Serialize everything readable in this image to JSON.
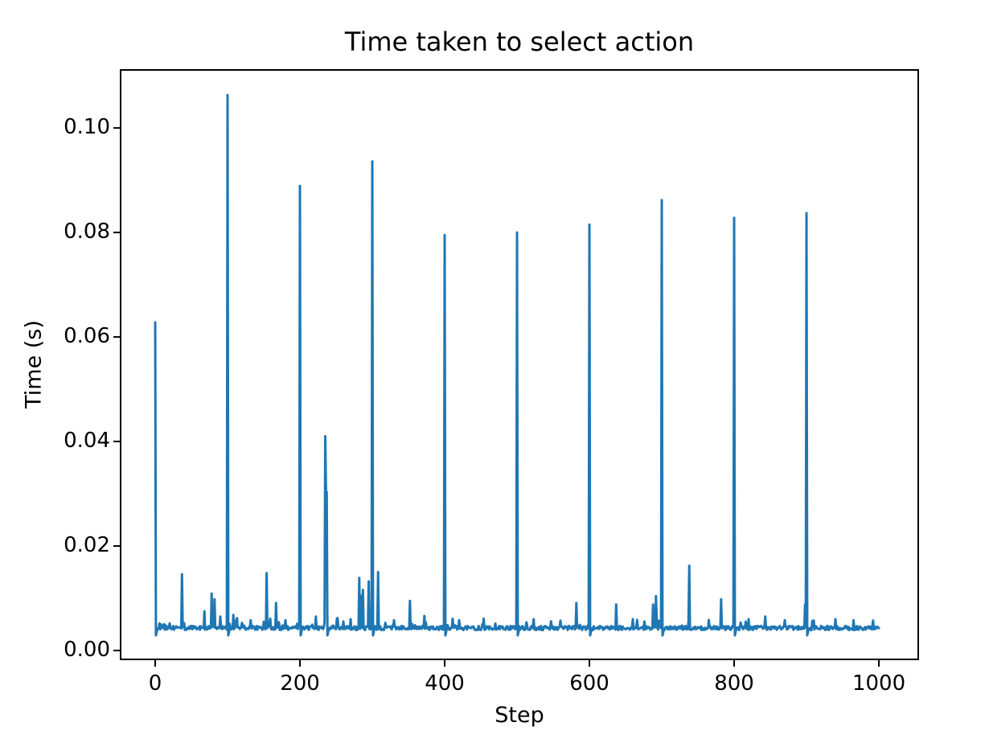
{
  "figure": {
    "background": "#ffffff"
  },
  "chart_data": {
    "type": "line",
    "title": "Time taken to select action",
    "xlabel": "Step",
    "ylabel": "Time (s)",
    "legend": null,
    "grid": false,
    "line_color": "#1f77b4",
    "axis_color": "#000000",
    "xlim": [
      -47.8,
      1054.4
    ],
    "ylim": [
      -0.0017,
      0.1111
    ],
    "xticks": [
      0,
      200,
      400,
      600,
      800,
      1000
    ],
    "xtick_labels": [
      "0",
      "200",
      "400",
      "600",
      "800",
      "1000"
    ],
    "yticks": [
      0.0,
      0.02,
      0.04,
      0.06,
      0.08,
      0.1
    ],
    "ytick_labels": [
      "0.00",
      "0.02",
      "0.04",
      "0.06",
      "0.08",
      "0.10"
    ],
    "x_range": [
      0,
      1000
    ],
    "n_points": 1001,
    "baseline": {
      "mean": 0.0043,
      "noise": 0.0004
    },
    "post_spike_dip": {
      "value": 0.0029,
      "recovery": 0.0035,
      "threshold": 0.025
    },
    "spikes": [
      {
        "step": 0,
        "value": 0.0628
      },
      {
        "step": 37,
        "value": 0.0146
      },
      {
        "step": 68,
        "value": 0.0075
      },
      {
        "step": 78,
        "value": 0.0109
      },
      {
        "step": 82,
        "value": 0.0098
      },
      {
        "step": 90,
        "value": 0.0065
      },
      {
        "step": 100,
        "value": 0.1063
      },
      {
        "step": 108,
        "value": 0.0068
      },
      {
        "step": 113,
        "value": 0.0062
      },
      {
        "step": 154,
        "value": 0.0148
      },
      {
        "step": 167,
        "value": 0.0091
      },
      {
        "step": 180,
        "value": 0.0058
      },
      {
        "step": 200,
        "value": 0.0889
      },
      {
        "step": 222,
        "value": 0.0065
      },
      {
        "step": 235,
        "value": 0.041
      },
      {
        "step": 236,
        "value": 0.0303
      },
      {
        "step": 237,
        "value": 0.0303
      },
      {
        "step": 252,
        "value": 0.0062
      },
      {
        "step": 270,
        "value": 0.006
      },
      {
        "step": 282,
        "value": 0.0139
      },
      {
        "step": 285,
        "value": 0.0105
      },
      {
        "step": 287,
        "value": 0.0116
      },
      {
        "step": 295,
        "value": 0.0132
      },
      {
        "step": 300,
        "value": 0.0936
      },
      {
        "step": 308,
        "value": 0.015
      },
      {
        "step": 330,
        "value": 0.0058
      },
      {
        "step": 352,
        "value": 0.0095
      },
      {
        "step": 372,
        "value": 0.0066
      },
      {
        "step": 400,
        "value": 0.0795
      },
      {
        "step": 420,
        "value": 0.0058
      },
      {
        "step": 454,
        "value": 0.0061
      },
      {
        "step": 500,
        "value": 0.08
      },
      {
        "step": 523,
        "value": 0.006
      },
      {
        "step": 560,
        "value": 0.0057
      },
      {
        "step": 582,
        "value": 0.0091
      },
      {
        "step": 600,
        "value": 0.0815
      },
      {
        "step": 637,
        "value": 0.0088
      },
      {
        "step": 660,
        "value": 0.006
      },
      {
        "step": 688,
        "value": 0.0088
      },
      {
        "step": 692,
        "value": 0.0104
      },
      {
        "step": 700,
        "value": 0.0862
      },
      {
        "step": 738,
        "value": 0.0162
      },
      {
        "step": 782,
        "value": 0.0098
      },
      {
        "step": 800,
        "value": 0.0828
      },
      {
        "step": 820,
        "value": 0.006
      },
      {
        "step": 843,
        "value": 0.0065
      },
      {
        "step": 870,
        "value": 0.0058
      },
      {
        "step": 898,
        "value": 0.0088
      },
      {
        "step": 900,
        "value": 0.0837
      },
      {
        "step": 940,
        "value": 0.006
      },
      {
        "step": 965,
        "value": 0.0058
      }
    ]
  }
}
